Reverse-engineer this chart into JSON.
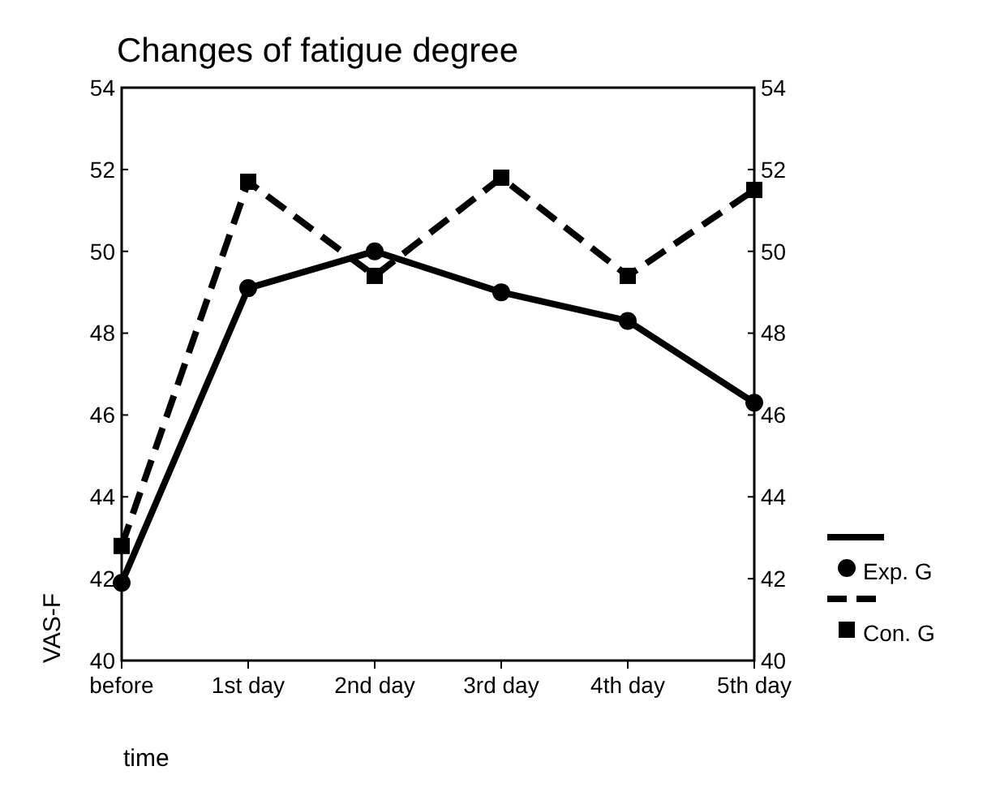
{
  "chart_data": {
    "type": "line",
    "title": "Changes of fatigue degree",
    "xlabel": "time",
    "ylabel": "VAS-F",
    "categories": [
      "before",
      "1st day",
      "2nd day",
      "3rd day",
      "4th day",
      "5th day"
    ],
    "series": [
      {
        "name": "Exp. G",
        "color": "#000000",
        "values": [
          41.9,
          49.1,
          50.0,
          49.0,
          48.3,
          46.3
        ],
        "marker": "circle",
        "line_style": "solid"
      },
      {
        "name": "Con. G",
        "color": "#000000",
        "values": [
          42.8,
          51.7,
          49.4,
          51.8,
          49.4,
          51.5
        ],
        "marker": "square",
        "line_style": "dashed"
      }
    ],
    "ylim": [
      40,
      54
    ],
    "yticks": [
      40,
      42,
      44,
      46,
      48,
      50,
      52,
      54
    ],
    "y2lim": [
      40,
      54
    ],
    "y2ticks": [
      40,
      42,
      44,
      46,
      48,
      50,
      52,
      54
    ],
    "grid": false,
    "legend": "right"
  }
}
